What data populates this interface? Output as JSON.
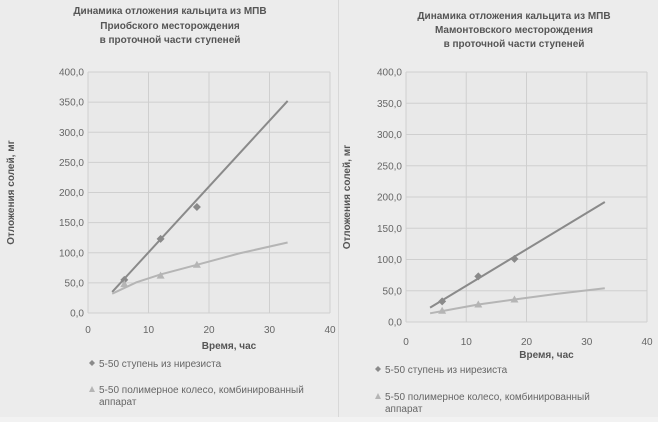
{
  "colors": {
    "series1": "#8a8a8a",
    "series2": "#b5b5b5",
    "grid": "#cfcfcf",
    "plot_bg": "#e9e9e9"
  },
  "chart_data": [
    {
      "type": "scatter",
      "title_lines": [
        "Динамика отложения кальцита из МПВ",
        "Приобского месторождения",
        "в проточной части ступеней"
      ],
      "xlabel": "Время, час",
      "ylabel": "Отложения солей, мг",
      "xlim": [
        0,
        40
      ],
      "ylim": [
        0,
        400
      ],
      "x_ticks": [
        "0",
        "10",
        "20",
        "30",
        "40"
      ],
      "y_ticks": [
        "0,0",
        "50,0",
        "100,0",
        "150,0",
        "200,0",
        "250,0",
        "300,0",
        "350,0",
        "400,0"
      ],
      "grid": true,
      "legend_position": "bottom",
      "series": [
        {
          "name": "5-50 ступень из нирезиста",
          "marker": "diamond",
          "points": [
            [
              6,
              55
            ],
            [
              12,
              123
            ],
            [
              18,
              176
            ]
          ],
          "trend": [
            [
              4,
              35
            ],
            [
              33,
              352
            ]
          ]
        },
        {
          "name": "5-50 полимерное колесо, комбинированный аппарат",
          "marker": "triangle",
          "points": [
            [
              6,
              48
            ],
            [
              12,
              62
            ],
            [
              18,
              80
            ]
          ],
          "trend_curve": [
            [
              4,
              32
            ],
            [
              8,
              51
            ],
            [
              12,
              64
            ],
            [
              18,
              80
            ],
            [
              25,
              99
            ],
            [
              33,
              117
            ]
          ]
        }
      ]
    },
    {
      "type": "scatter",
      "title_lines": [
        "Динамика отложения кальцита из МПВ",
        "Мамонтовского месторождения",
        "в проточной части ступеней"
      ],
      "xlabel": "Время, час",
      "ylabel": "Отложения солей, мг",
      "xlim": [
        0,
        40
      ],
      "ylim": [
        0,
        400
      ],
      "x_ticks": [
        "0",
        "10",
        "20",
        "30",
        "40"
      ],
      "y_ticks": [
        "0,0",
        "50,0",
        "100,0",
        "150,0",
        "200,0",
        "250,0",
        "300,0",
        "350,0",
        "400,0"
      ],
      "grid": true,
      "legend_position": "bottom",
      "series": [
        {
          "name": "5-50 ступень из нирезиста",
          "marker": "diamond",
          "points": [
            [
              6,
              33
            ],
            [
              12,
              73
            ],
            [
              18,
              101
            ]
          ],
          "trend": [
            [
              4,
              23
            ],
            [
              33,
              192
            ]
          ]
        },
        {
          "name": "5-50 полимерное колесо, комбинированный аппарат",
          "marker": "triangle",
          "points": [
            [
              6,
              18
            ],
            [
              12,
              28
            ],
            [
              18,
              36
            ]
          ],
          "trend_curve": [
            [
              4,
              14
            ],
            [
              8,
              21
            ],
            [
              12,
              28
            ],
            [
              18,
              36
            ],
            [
              25,
              45
            ],
            [
              33,
              54
            ]
          ]
        }
      ]
    }
  ]
}
